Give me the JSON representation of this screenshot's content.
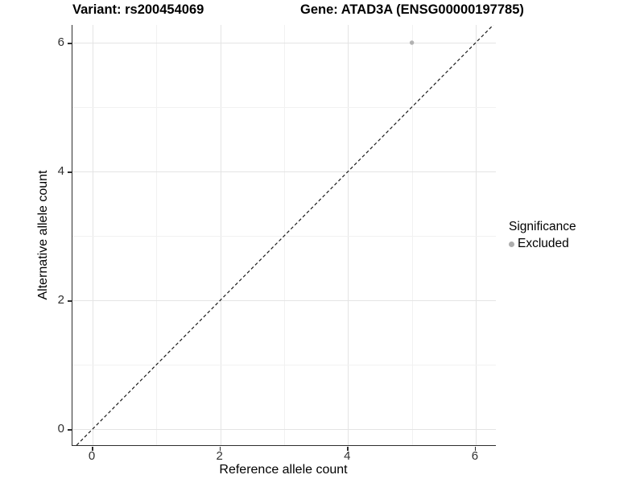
{
  "titles": {
    "variant": "Variant: rs200454069",
    "gene": "Gene: ATAD3A (ENSG00000197785)"
  },
  "axes": {
    "x": {
      "label": "Reference allele count"
    },
    "y": {
      "label": "Alternative allele count"
    }
  },
  "legend": {
    "title": "Significance",
    "items": [
      {
        "label": "Excluded",
        "color": "#adadad"
      }
    ]
  },
  "colors": {
    "axis_line": "#2e2e2e",
    "grid_major": "#e4e4e4",
    "grid_minor": "#f1f1f1",
    "reference_line": "#1a1a1a",
    "point": "#b2b2b2"
  },
  "chart_data": {
    "type": "scatter",
    "title": "Variant: rs200454069 — Gene: ATAD3A (ENSG00000197785)",
    "xlabel": "Reference allele count",
    "ylabel": "Alternative allele count",
    "xticks": [
      0,
      2,
      4,
      6
    ],
    "yticks": [
      0,
      2,
      4,
      6
    ],
    "xlim": [
      -0.315,
      6.3
    ],
    "ylim": [
      -0.275,
      6.275
    ],
    "grid": "on",
    "legend_position": "right",
    "series": [
      {
        "name": "Excluded",
        "color": "#b2b2b2",
        "points": [
          {
            "x": 5,
            "y": 6
          }
        ]
      }
    ],
    "reference_line": {
      "type": "identity",
      "style": "dashed",
      "from": [
        -0.25,
        -0.25
      ],
      "to": [
        6.275,
        6.275
      ]
    }
  }
}
